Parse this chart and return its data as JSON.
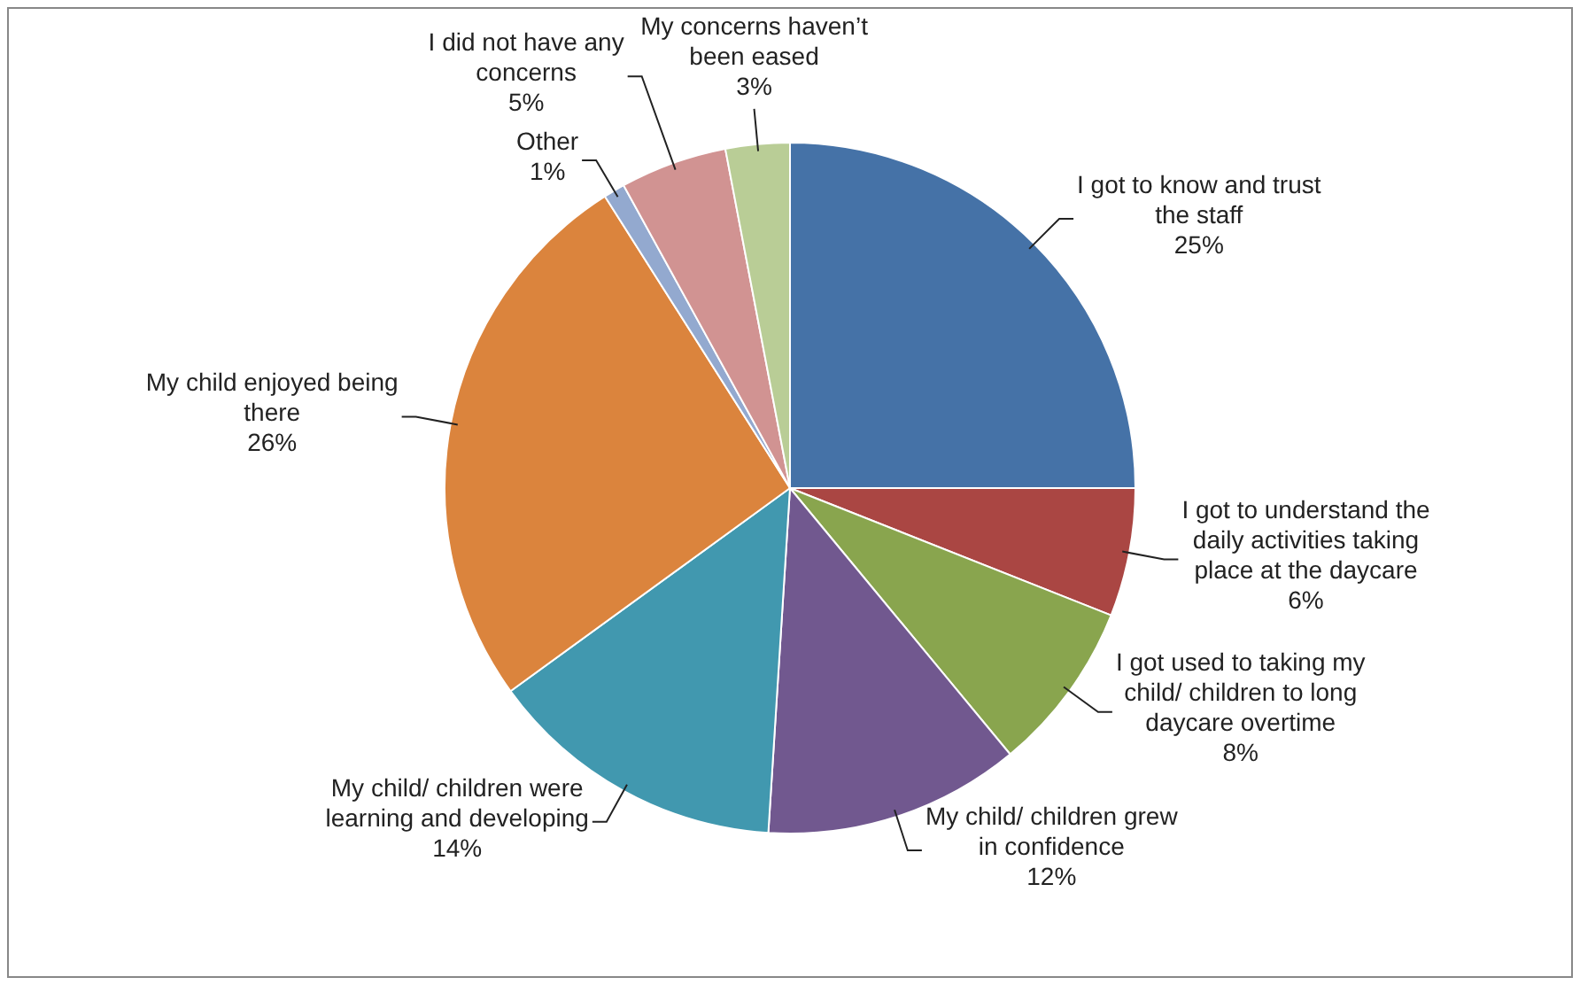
{
  "chart_data": {
    "type": "pie",
    "categories": [
      "I got to know and trust the staff",
      "I got to understand the daily activities taking place at the daycare",
      "I got used to taking my child/ children to long daycare overtime",
      "My child/ children grew in confidence",
      "My child/ children were learning and developing",
      "My child enjoyed being there",
      "Other",
      "I did not have any concerns",
      "My concerns haven’t been eased"
    ],
    "values": [
      25,
      6,
      8,
      12,
      14,
      26,
      1,
      5,
      3
    ],
    "value_labels": [
      "25%",
      "6%",
      "8%",
      "12%",
      "14%",
      "26%",
      "1%",
      "5%",
      "3%"
    ],
    "colors": [
      "#4572a7",
      "#aa4643",
      "#89a54e",
      "#71588f",
      "#4198af",
      "#db843d",
      "#93a9cf",
      "#d19392",
      "#b9cd96"
    ],
    "legend": false
  }
}
